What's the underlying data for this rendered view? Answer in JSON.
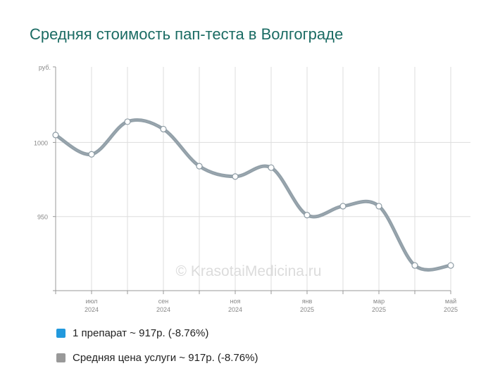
{
  "title": "Средняя стоимость пап-теста в Волгограде",
  "watermark": "© KrasotaiMedicina.ru",
  "chart_data": {
    "type": "line",
    "y_unit_label": "руб.",
    "y_ticks": [
      950,
      1000
    ],
    "ylim": [
      900,
      1051
    ],
    "x_ticks": [
      {
        "month": "июл",
        "year": "2024",
        "index": 1
      },
      {
        "month": "сен",
        "year": "2024",
        "index": 3
      },
      {
        "month": "ноя",
        "year": "2024",
        "index": 5
      },
      {
        "month": "янв",
        "year": "2025",
        "index": 7
      },
      {
        "month": "мар",
        "year": "2025",
        "index": 9
      },
      {
        "month": "май",
        "year": "2025",
        "index": 11
      }
    ],
    "x": [
      "2024-06",
      "2024-07",
      "2024-08",
      "2024-09",
      "2024-10",
      "2024-11",
      "2024-12",
      "2025-01",
      "2025-02",
      "2025-03",
      "2025-04",
      "2025-05"
    ],
    "series": [
      {
        "name": "1 препарат ~ 917р. (-8.76%)",
        "color": "#1f9bde",
        "values": [
          1005,
          992,
          1014,
          1009,
          984,
          977,
          983,
          951,
          957,
          957,
          917,
          917
        ]
      },
      {
        "name": "Средняя цена услуги ~ 917р. (-8.76%)",
        "color": "#8c9aa3",
        "values": [
          1005,
          992,
          1014,
          1009,
          984,
          977,
          983,
          951,
          957,
          957,
          917,
          917
        ]
      }
    ],
    "grid": true
  },
  "legend": [
    {
      "label": "1 препарат ~ 917р. (-8.76%)",
      "color": "#2299dd"
    },
    {
      "label": "Средняя цена услуги ~ 917р. (-8.76%)",
      "color": "#999999"
    }
  ]
}
